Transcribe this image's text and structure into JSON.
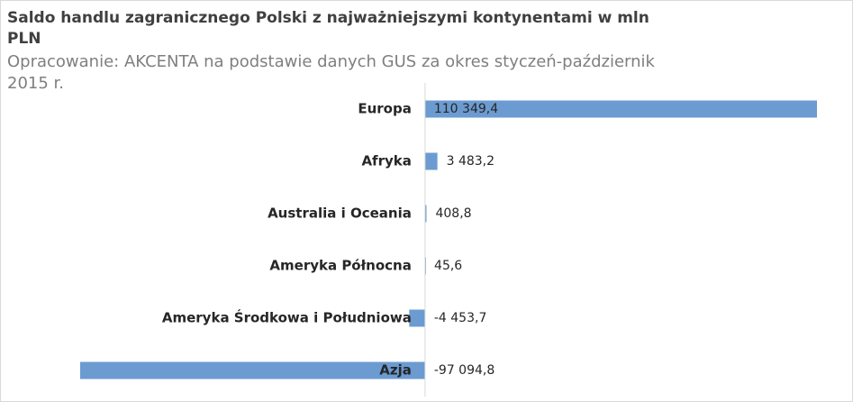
{
  "chart_data": {
    "type": "barh",
    "title": "Saldo handlu zagranicznego Polski z najważniejszymi kontynentami w mln PLN",
    "subtitle": "Opracowanie: AKCENTA na podstawie danych GUS za okres styczeń-październik 2015 r.",
    "categories": [
      "Europa",
      "Afryka",
      "Australia i Oceania",
      "Ameryka Północna",
      "Ameryka Środkowa i Południowa",
      "Azja"
    ],
    "values": [
      110349.4,
      3483.2,
      408.8,
      45.6,
      -4453.7,
      -97094.8
    ],
    "value_labels": [
      "110 349,4",
      "3 483,2",
      "408,8",
      "45,6",
      "-4 453,7",
      "-97 094,8"
    ],
    "color": "#6b9bd1"
  }
}
